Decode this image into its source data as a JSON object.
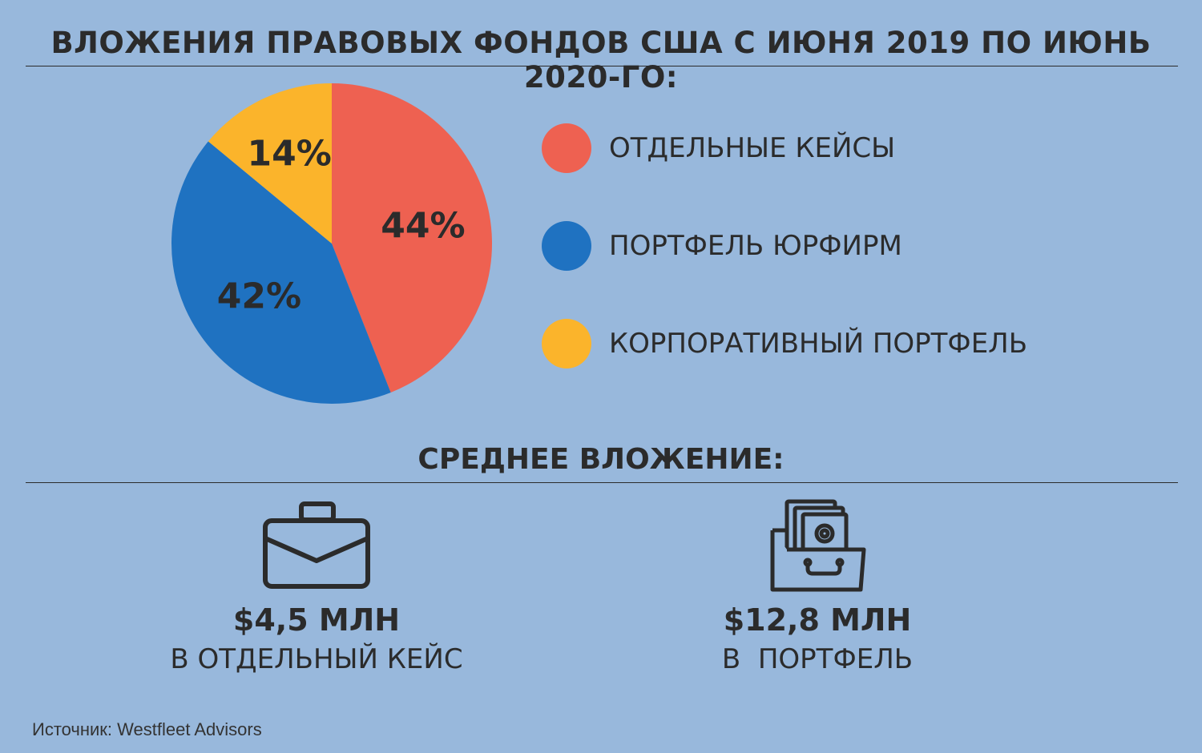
{
  "title": "ВЛОЖЕНИЯ ПРАВОВЫХ ФОНДОВ США С ИЮНЯ 2019 ПО ИЮНЬ 2020-ГО:",
  "chart_data": {
    "type": "pie",
    "title": "ВЛОЖЕНИЯ ПРАВОВЫХ ФОНДОВ США С ИЮНЯ 2019 ПО ИЮНЬ 2020-ГО:",
    "categories": [
      "ОТДЕЛЬНЫЕ КЕЙСЫ",
      "ПОРТФЕЛЬ ЮРФИРМ",
      "КОРПОРАТИВНЫЙ ПОРТФЕЛЬ"
    ],
    "values": [
      44,
      42,
      14
    ],
    "labels": [
      "44%",
      "42%",
      "14%"
    ],
    "colors": [
      "#ee6151",
      "#1f72c1",
      "#fbb42b"
    ],
    "legend_placement": "right"
  },
  "legend": [
    {
      "label": "ОТДЕЛЬНЫЕ КЕЙСЫ",
      "color": "#ee6151"
    },
    {
      "label": "ПОРТФЕЛЬ ЮРФИРМ",
      "color": "#1f72c1"
    },
    {
      "label": "КОРПОРАТИВНЫЙ ПОРТФЕЛЬ",
      "color": "#fbb42b"
    }
  ],
  "subtitle": "СРЕДНЕЕ ВЛОЖЕНИЕ:",
  "stats": [
    {
      "icon": "briefcase-icon",
      "value": "$4,5 МЛН",
      "caption": "В ОТДЕЛЬНЫЙ КЕЙС"
    },
    {
      "icon": "folder-portfolio-icon",
      "value": "$12,8 МЛН",
      "caption": "В  ПОРТФЕЛЬ"
    }
  ],
  "source": "Источник: Westfleet Advisors"
}
